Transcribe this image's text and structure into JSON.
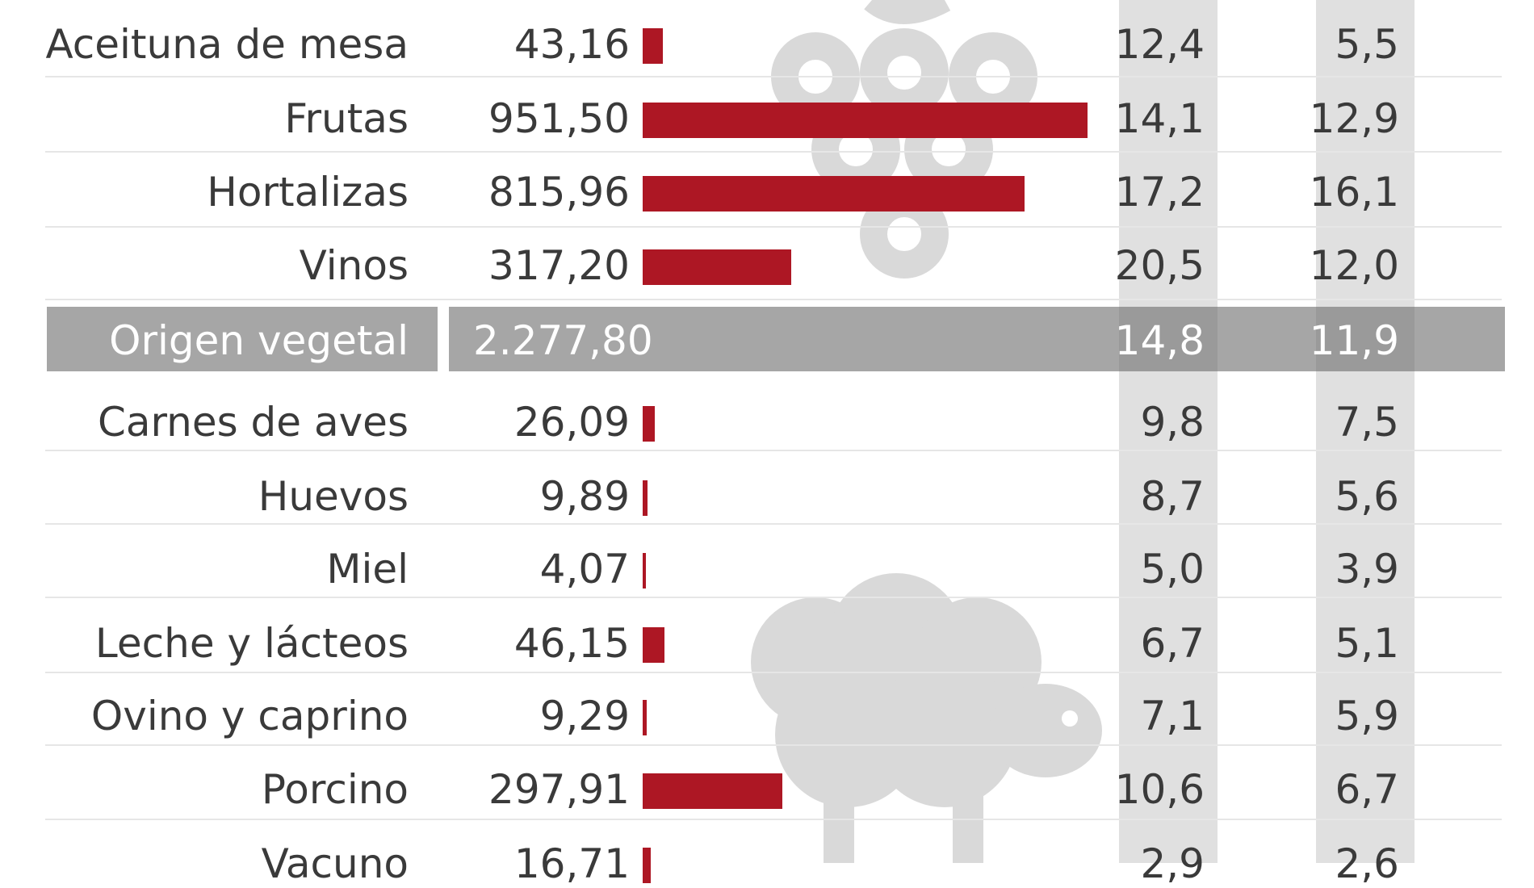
{
  "chart_data": {
    "type": "bar",
    "categories": [
      "Aceituna de mesa",
      "Frutas",
      "Hortalizas",
      "Vinos",
      "Origen vegetal",
      "Carnes de aves",
      "Huevos",
      "Miel",
      "Leche y lácteos",
      "Ovino y caprino",
      "Porcino",
      "Vacuno"
    ],
    "values_text": [
      "43,16",
      "951,50",
      "815,96",
      "317,20",
      "2.277,80",
      "26,09",
      "9,89",
      "4,07",
      "46,15",
      "9,29",
      "297,91",
      "16,71"
    ],
    "values": [
      43.16,
      951.5,
      815.96,
      317.2,
      2277.8,
      26.09,
      9.89,
      4.07,
      46.15,
      9.29,
      297.91,
      16.71
    ],
    "col1": [
      "12,4",
      "14,1",
      "17,2",
      "20,5",
      "14,8",
      "9,8",
      "8,7",
      "5,0",
      "6,7",
      "7,1",
      "10,6",
      "2,9"
    ],
    "col2": [
      "5,5",
      "12,9",
      "16,1",
      "12,0",
      "11,9",
      "7,5",
      "5,6",
      "3,9",
      "5,1",
      "5,9",
      "6,7",
      "2,6"
    ],
    "subtotal_category": "Origen vegetal",
    "bar_color": "#ad1724",
    "band_color": "#a6a6a6",
    "column_shade": "#e0e0e0",
    "watermark_color": "#d9d9d9"
  }
}
